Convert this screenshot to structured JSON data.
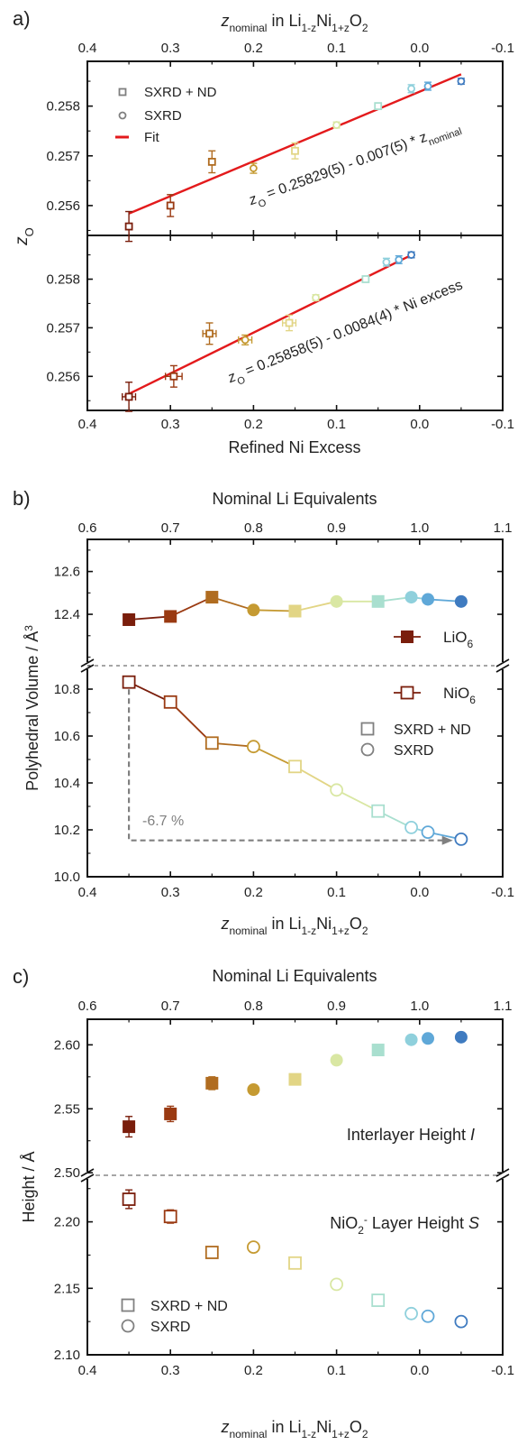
{
  "colors": {
    "palette": [
      "#7a1e0c",
      "#9a3a12",
      "#b06c20",
      "#c59a32",
      "#e2d585",
      "#d9e7a3",
      "#a9dfcf",
      "#8fd0dc",
      "#5fa8d8",
      "#3f7bc0"
    ]
  },
  "chart_data": [
    {
      "panel_label": "a)",
      "type": "scatter",
      "top_axis_label_parts": [
        "z",
        "nominal",
        " in Li",
        "1-z",
        "Ni",
        "1+z",
        "O",
        "2"
      ],
      "bottom_axis_label": "Refined Ni Excess",
      "ylabel_parts": [
        "z",
        "O"
      ],
      "xlim": [
        0.4,
        -0.1
      ],
      "xticks": [
        "0.4",
        "0.3",
        "0.2",
        "0.1",
        "0.0",
        "-0.1"
      ],
      "legend": {
        "placement": "top-left",
        "entries": [
          {
            "label": "SXRD + ND",
            "marker": "square"
          },
          {
            "label": "SXRD",
            "marker": "circle"
          },
          {
            "label": "Fit",
            "marker": "line",
            "color": "#e31a1c"
          }
        ]
      },
      "subpanels": [
        {
          "x_variable": "z nominal",
          "ylim": [
            0.2554,
            0.2589
          ],
          "yticks": [
            "0.256",
            "0.257",
            "0.258"
          ],
          "fit_annotation_parts": [
            "z",
            "O",
            " = 0.25829(5) - 0.007(5) * z",
            "nominal"
          ],
          "fit": {
            "intercept": 0.25829,
            "slope": -0.007,
            "x_range": [
              0.35,
              -0.05
            ]
          },
          "points": [
            {
              "x": 0.35,
              "y": 0.25558,
              "yerr": 0.0003,
              "marker": "square"
            },
            {
              "x": 0.3,
              "y": 0.256,
              "yerr": 0.00022,
              "marker": "square"
            },
            {
              "x": 0.25,
              "y": 0.25688,
              "yerr": 0.00022,
              "marker": "square"
            },
            {
              "x": 0.2,
              "y": 0.25675,
              "yerr": 0.0001,
              "marker": "circle"
            },
            {
              "x": 0.15,
              "y": 0.2571,
              "yerr": 0.00016,
              "marker": "square"
            },
            {
              "x": 0.1,
              "y": 0.25762,
              "yerr": 6e-05,
              "marker": "circle"
            },
            {
              "x": 0.05,
              "y": 0.258,
              "yerr": 6e-05,
              "marker": "square"
            },
            {
              "x": 0.01,
              "y": 0.25835,
              "yerr": 8e-05,
              "marker": "circle"
            },
            {
              "x": -0.01,
              "y": 0.2584,
              "yerr": 8e-05,
              "marker": "circle"
            },
            {
              "x": -0.05,
              "y": 0.2585,
              "yerr": 6e-05,
              "marker": "circle"
            }
          ]
        },
        {
          "x_variable": "Refined Ni Excess",
          "ylim": [
            0.2553,
            0.2589
          ],
          "yticks": [
            "0.256",
            "0.257",
            "0.258"
          ],
          "fit_annotation_parts": [
            "z",
            "O",
            " = 0.25858(5) - 0.0084(4) * Ni excess"
          ],
          "fit": {
            "intercept": 0.25858,
            "slope": -0.0084,
            "x_range": [
              0.355,
              0.01
            ]
          },
          "points": [
            {
              "x": 0.35,
              "y": 0.25558,
              "yerr": 0.0003,
              "xerr": 0.008,
              "marker": "square"
            },
            {
              "x": 0.296,
              "y": 0.256,
              "yerr": 0.00022,
              "xerr": 0.01,
              "marker": "square"
            },
            {
              "x": 0.253,
              "y": 0.25688,
              "yerr": 0.00022,
              "xerr": 0.008,
              "marker": "square"
            },
            {
              "x": 0.21,
              "y": 0.25675,
              "yerr": 0.0001,
              "xerr": 0.008,
              "marker": "circle"
            },
            {
              "x": 0.157,
              "y": 0.2571,
              "yerr": 0.00016,
              "xerr": 0.008,
              "marker": "square"
            },
            {
              "x": 0.125,
              "y": 0.25762,
              "yerr": 6e-05,
              "marker": "circle"
            },
            {
              "x": 0.065,
              "y": 0.258,
              "yerr": 6e-05,
              "marker": "square"
            },
            {
              "x": 0.04,
              "y": 0.25835,
              "yerr": 8e-05,
              "marker": "circle"
            },
            {
              "x": 0.025,
              "y": 0.2584,
              "yerr": 8e-05,
              "marker": "circle"
            },
            {
              "x": 0.01,
              "y": 0.2585,
              "yerr": 6e-05,
              "marker": "circle"
            }
          ]
        }
      ]
    },
    {
      "panel_label": "b)",
      "type": "line",
      "top_axis_label": "Nominal Li Equivalents",
      "top_xticks": [
        "0.6",
        "0.7",
        "0.8",
        "0.9",
        "1.0",
        "1.1"
      ],
      "top_xlim": [
        0.6,
        1.1
      ],
      "bottom_axis_label_parts": [
        "z",
        "nominal",
        " in Li",
        "1-z",
        "Ni",
        "1+z",
        "O",
        "2"
      ],
      "xlim": [
        0.4,
        -0.1
      ],
      "xticks": [
        "0.4",
        "0.3",
        "0.2",
        "0.1",
        "0.0",
        "-0.1"
      ],
      "ylabel_parts": [
        "Polyhedral Volume / Å",
        "3"
      ],
      "y_broken": true,
      "upper": {
        "ylim": [
          12.16,
          12.75
        ],
        "yticks": [
          "12.4",
          "12.6"
        ]
      },
      "lower": {
        "ylim": [
          10.0,
          10.9
        ],
        "yticks": [
          "10.0",
          "10.2",
          "10.4",
          "10.6",
          "10.8"
        ]
      },
      "legend": {
        "placement": "right",
        "entries": [
          {
            "label_parts": [
              "LiO",
              "6"
            ],
            "marker": "square-filled",
            "color": "#7a1e0c"
          },
          {
            "label_parts": [
              "NiO",
              "6"
            ],
            "marker": "square-open",
            "color": "#7a1e0c"
          },
          {
            "label": "SXRD + ND",
            "marker": "square"
          },
          {
            "label": "SXRD",
            "marker": "circle"
          }
        ]
      },
      "x": [
        0.35,
        0.3,
        0.25,
        0.2,
        0.15,
        0.1,
        0.05,
        0.01,
        -0.01,
        -0.05
      ],
      "markers": [
        "square",
        "square",
        "square",
        "circle",
        "square",
        "circle",
        "square",
        "circle",
        "circle",
        "circle"
      ],
      "series": [
        {
          "name": "LiO6",
          "filled": true,
          "values": [
            12.375,
            12.39,
            12.48,
            12.42,
            12.415,
            12.46,
            12.46,
            12.48,
            12.47,
            12.46
          ]
        },
        {
          "name": "NiO6",
          "filled": false,
          "values": [
            10.83,
            10.745,
            10.57,
            10.555,
            10.47,
            10.37,
            10.28,
            10.21,
            10.19,
            10.16
          ]
        }
      ],
      "annotation": {
        "text": "-6.7 %",
        "from": [
          0.35,
          10.83
        ],
        "corner_y": 10.155,
        "to_x": -0.04
      }
    },
    {
      "panel_label": "c)",
      "type": "scatter",
      "top_axis_label": "Nominal Li Equivalents",
      "top_xticks": [
        "0.6",
        "0.7",
        "0.8",
        "0.9",
        "1.0",
        "1.1"
      ],
      "top_xlim": [
        0.6,
        1.1
      ],
      "bottom_axis_label_parts": [
        "z",
        "nominal",
        " in Li",
        "1-z",
        "Ni",
        "1+z",
        "O",
        "2"
      ],
      "xlim": [
        0.4,
        -0.1
      ],
      "xticks": [
        "0.4",
        "0.3",
        "0.2",
        "0.1",
        "0.0",
        "-0.1"
      ],
      "ylabel": "Height / Å",
      "y_broken": true,
      "upper": {
        "ylim": [
          2.498,
          2.62
        ],
        "yticks": [
          "2.50",
          "2.55",
          "2.60"
        ],
        "label_parts": [
          "Interlayer Height ",
          "I"
        ]
      },
      "lower": {
        "ylim": [
          2.1,
          2.235
        ],
        "yticks": [
          "2.10",
          "2.15",
          "2.20"
        ],
        "label_parts": [
          "NiO",
          "2",
          "-",
          " Layer Height ",
          "S"
        ]
      },
      "legend": {
        "placement": "bottom-left",
        "entries": [
          {
            "label": "SXRD + ND",
            "marker": "square"
          },
          {
            "label": "SXRD",
            "marker": "circle"
          }
        ]
      },
      "x": [
        0.35,
        0.3,
        0.25,
        0.2,
        0.15,
        0.1,
        0.05,
        0.01,
        -0.01,
        -0.05
      ],
      "markers": [
        "square",
        "square",
        "square",
        "circle",
        "square",
        "circle",
        "square",
        "circle",
        "circle",
        "circle"
      ],
      "series": [
        {
          "name": "Interlayer Height I",
          "filled": true,
          "values": [
            2.536,
            2.546,
            2.57,
            2.565,
            2.573,
            2.588,
            2.596,
            2.604,
            2.605,
            2.606
          ],
          "yerr": [
            0.008,
            0.006,
            0.005,
            0.003,
            0.003,
            0.002,
            0.002,
            0.002,
            0.002,
            0.002
          ]
        },
        {
          "name": "NiO2- Layer Height S",
          "filled": false,
          "values": [
            2.217,
            2.204,
            2.177,
            2.181,
            2.169,
            2.153,
            2.141,
            2.131,
            2.129,
            2.125
          ],
          "yerr": [
            0.007,
            0.005,
            0.004,
            0.003,
            0.003,
            0.002,
            0.002,
            0.003,
            0.003,
            0.003
          ]
        }
      ]
    }
  ]
}
